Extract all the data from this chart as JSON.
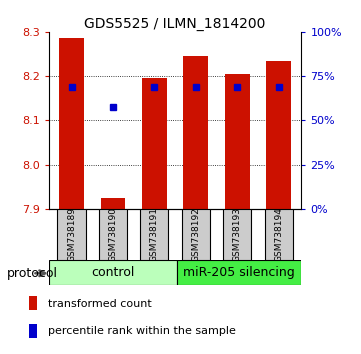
{
  "title": "GDS5525 / ILMN_1814200",
  "samples": [
    "GSM738189",
    "GSM738190",
    "GSM738191",
    "GSM738192",
    "GSM738193",
    "GSM738194"
  ],
  "red_values": [
    8.285,
    7.925,
    8.195,
    8.245,
    8.205,
    8.235
  ],
  "blue_values": [
    8.175,
    8.13,
    8.175,
    8.175,
    8.175,
    8.175
  ],
  "ymin": 7.9,
  "ymax": 8.3,
  "y_ticks_left": [
    7.9,
    8.0,
    8.1,
    8.2,
    8.3
  ],
  "y_ticks_right_pct": [
    0,
    25,
    50,
    75,
    100
  ],
  "bar_color": "#cc1100",
  "blue_color": "#0000cc",
  "group1_label": "control",
  "group2_label": "miR-205 silencing",
  "group1_bg": "#bbffbb",
  "group2_bg": "#44ee44",
  "sample_bg": "#cccccc",
  "legend_red_label": "transformed count",
  "legend_blue_label": "percentile rank within the sample",
  "protocol_label": "protocol",
  "bar_width": 0.6
}
